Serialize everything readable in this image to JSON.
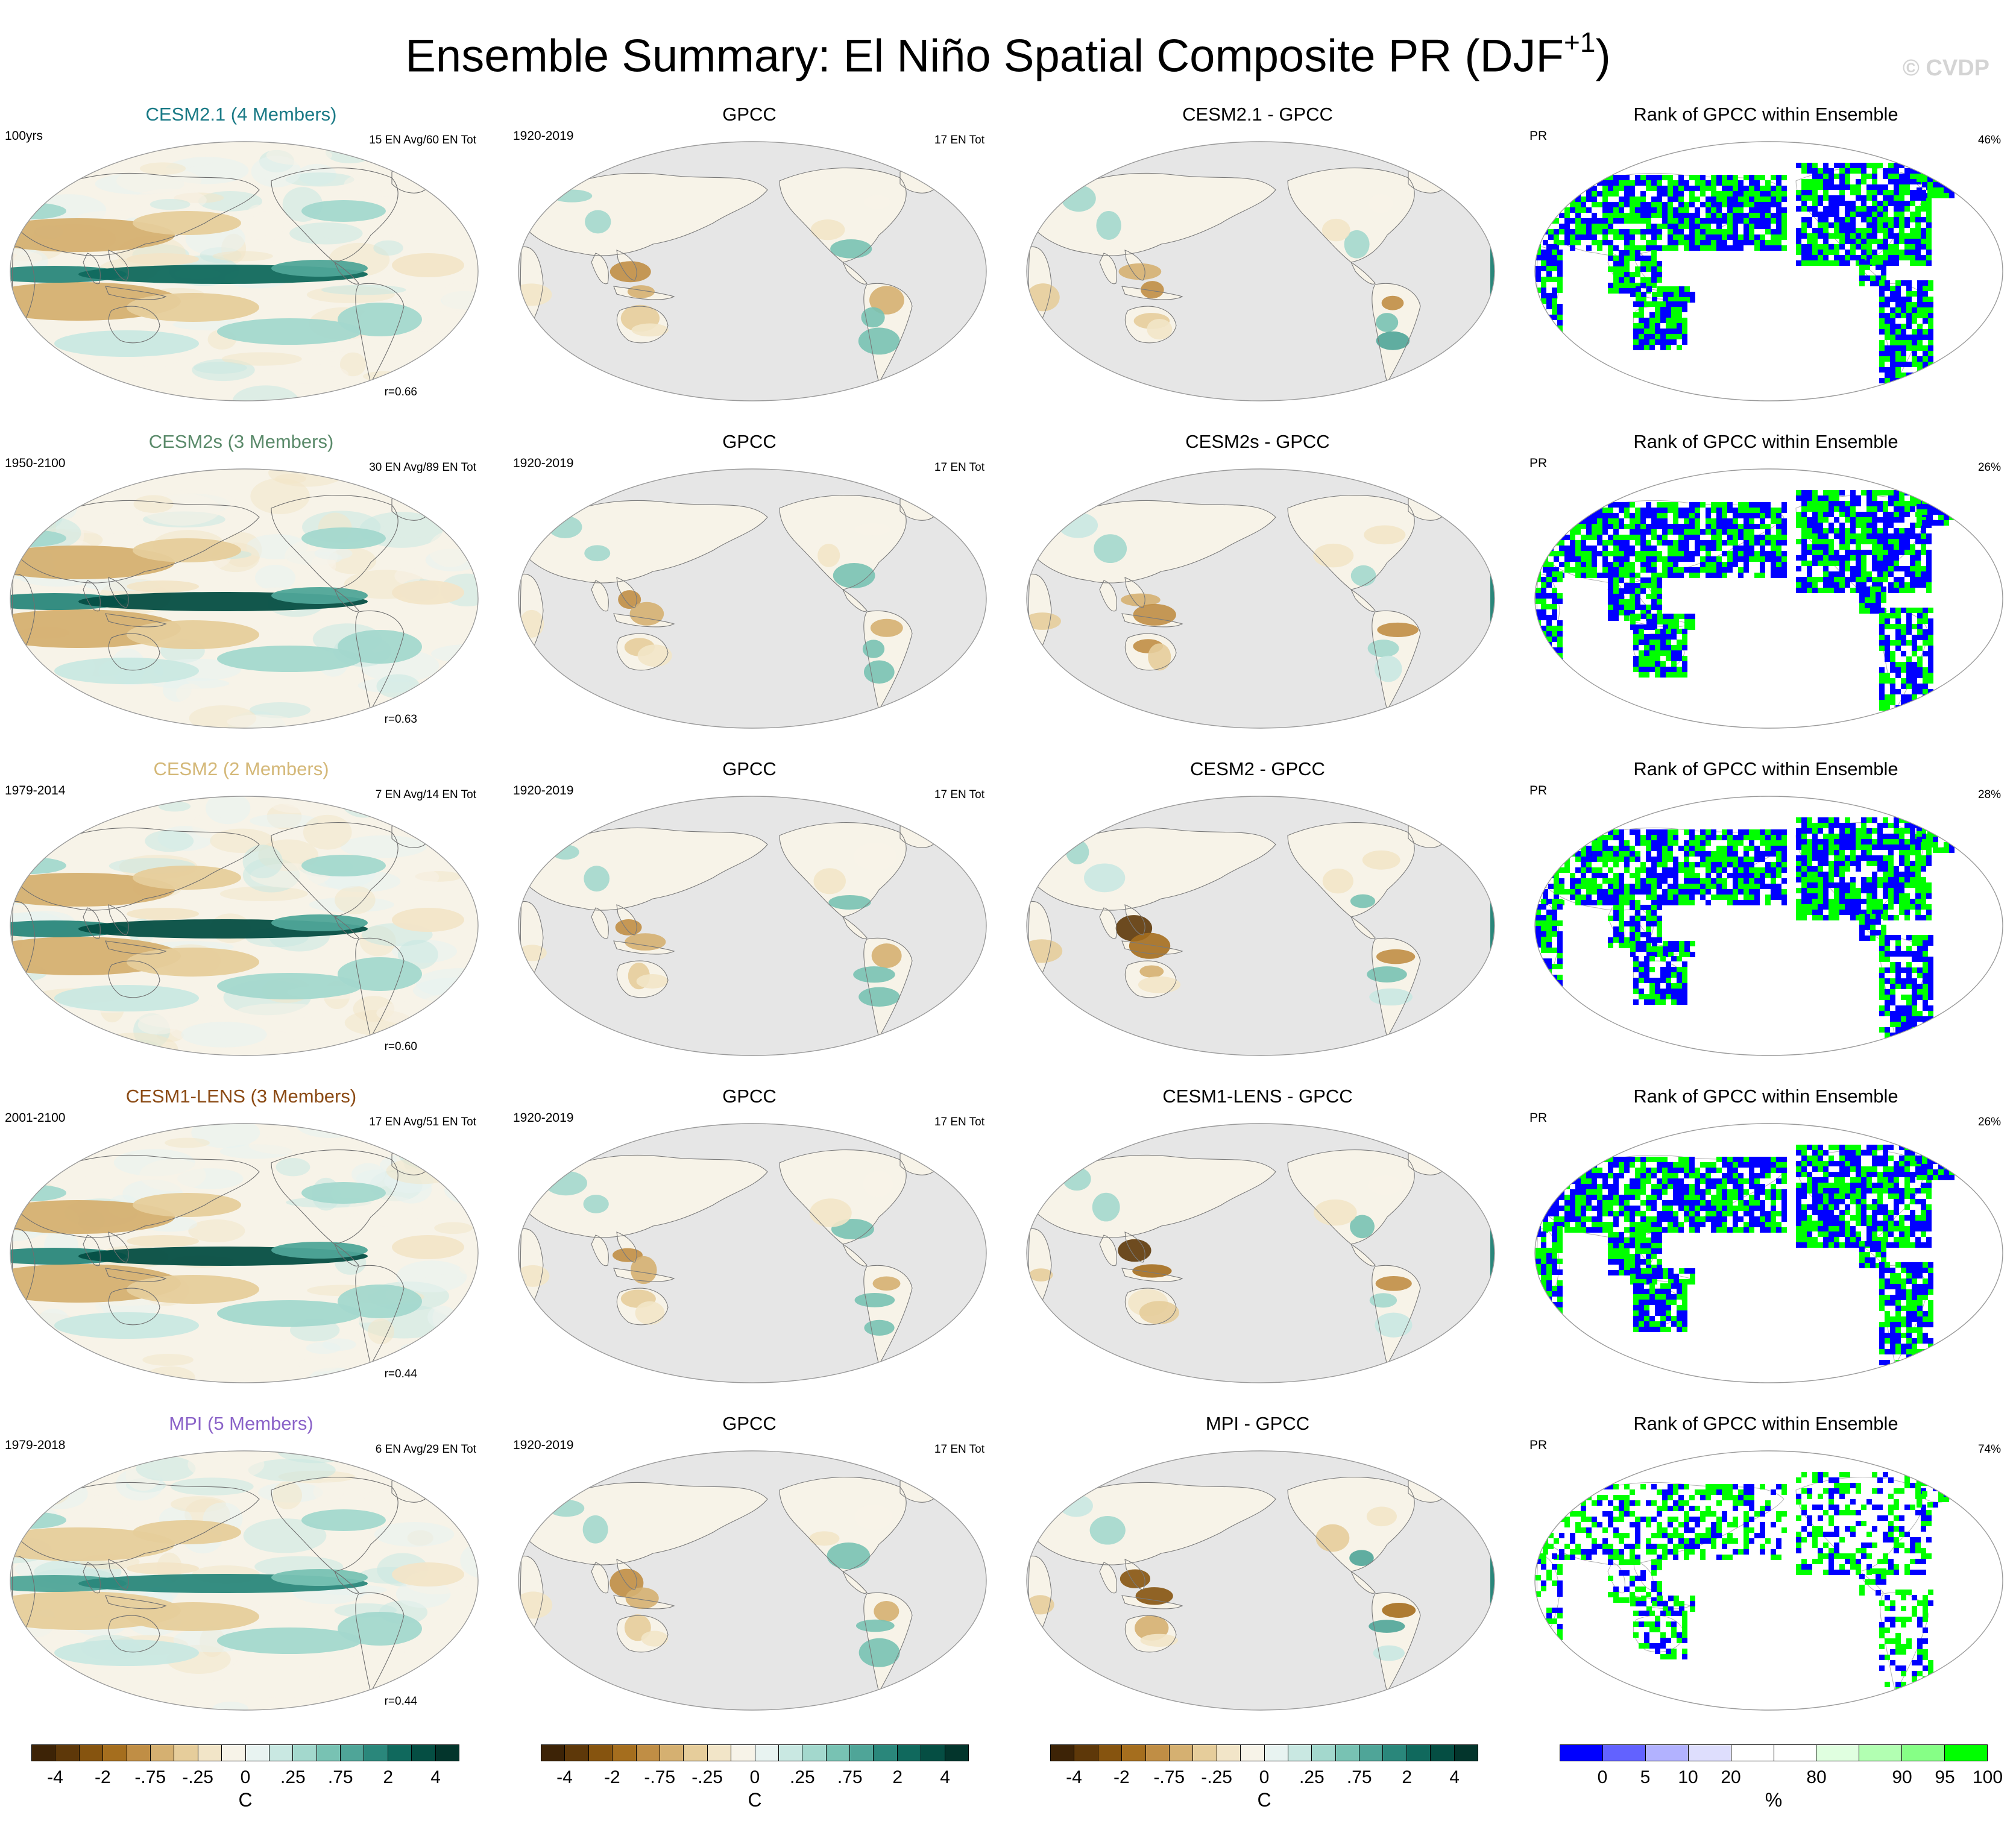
{
  "title": "Ensemble Summary: El Niño Spatial Composite PR (DJF",
  "title_sup": "+1",
  "title_close": ")",
  "watermark": "© CVDP",
  "rows": [
    {
      "model": {
        "title": "CESM2.1 (4 Members)",
        "color": "#1a7a86",
        "years": "100yrs",
        "count": "15 EN Avg/60 EN Tot",
        "corr": "r=0.66",
        "intensity": 1.0
      },
      "obs": {
        "title": "GPCC",
        "years": "1920-2019",
        "count": "17 EN Tot"
      },
      "diff": {
        "title": "CESM2.1 - GPCC"
      },
      "rank": {
        "title": "Rank of GPCC within Ensemble",
        "var": "PR",
        "pct": "46%"
      }
    },
    {
      "model": {
        "title": "CESM2s (3 Members)",
        "color": "#5a8a6a",
        "years": "1950-2100",
        "count": "30 EN Avg/89 EN Tot",
        "corr": "r=0.63",
        "intensity": 1.1
      },
      "obs": {
        "title": "GPCC",
        "years": "1920-2019",
        "count": "17 EN Tot"
      },
      "diff": {
        "title": "CESM2s - GPCC"
      },
      "rank": {
        "title": "Rank of GPCC within Ensemble",
        "var": "PR",
        "pct": "26%"
      }
    },
    {
      "model": {
        "title": "CESM2 (2 Members)",
        "color": "#d4b878",
        "years": "1979-2014",
        "count": "7 EN Avg/14 EN Tot",
        "corr": "r=0.60",
        "intensity": 1.05
      },
      "obs": {
        "title": "GPCC",
        "years": "1920-2019",
        "count": "17 EN Tot"
      },
      "diff": {
        "title": "CESM2 - GPCC"
      },
      "rank": {
        "title": "Rank of GPCC within Ensemble",
        "var": "PR",
        "pct": "28%"
      }
    },
    {
      "model": {
        "title": "CESM1-LENS (3 Members)",
        "color": "#8b4a14",
        "years": "2001-2100",
        "count": "17 EN Avg/51 EN Tot",
        "corr": "r=0.44",
        "intensity": 1.15
      },
      "obs": {
        "title": "GPCC",
        "years": "1920-2019",
        "count": "17 EN Tot"
      },
      "diff": {
        "title": "CESM1-LENS - GPCC"
      },
      "rank": {
        "title": "Rank of GPCC within Ensemble",
        "var": "PR",
        "pct": "26%"
      }
    },
    {
      "model": {
        "title": "MPI (5 Members)",
        "color": "#8a62c8",
        "years": "1979-2018",
        "count": "6 EN Avg/29 EN Tot",
        "corr": "r=0.44",
        "intensity": 0.85
      },
      "obs": {
        "title": "GPCC",
        "years": "1920-2019",
        "count": "17 EN Tot"
      },
      "diff": {
        "title": "MPI - GPCC"
      },
      "rank": {
        "title": "Rank of GPCC within Ensemble",
        "var": "PR",
        "pct": "74%"
      }
    }
  ],
  "colorbar_brbg": {
    "colors": [
      "#3d2306",
      "#5e3809",
      "#86540f",
      "#a56e1e",
      "#c08e45",
      "#d5b071",
      "#e6cd9b",
      "#f2e5c8",
      "#f7f3e8",
      "#e8f3f1",
      "#c9e8e2",
      "#a3d8cd",
      "#78c2b3",
      "#4fa598",
      "#2a877b",
      "#10695d",
      "#054e43",
      "#03352c"
    ],
    "ticks": [
      "-4",
      "-2",
      "-.75",
      "-.25",
      "0",
      ".25",
      ".75",
      "2",
      "4"
    ],
    "unit": "C"
  },
  "colorbar_rank": {
    "colors": [
      "#0000ff",
      "#6262ff",
      "#b2b2ff",
      "#dedefd",
      "#ffffff",
      "#ffffff",
      "#e0ffe0",
      "#b2ffb2",
      "#86ff86",
      "#00ff00"
    ],
    "ticks": [
      "0",
      "5",
      "10",
      "20",
      "80",
      "90",
      "95",
      "100"
    ],
    "unit": "%"
  }
}
